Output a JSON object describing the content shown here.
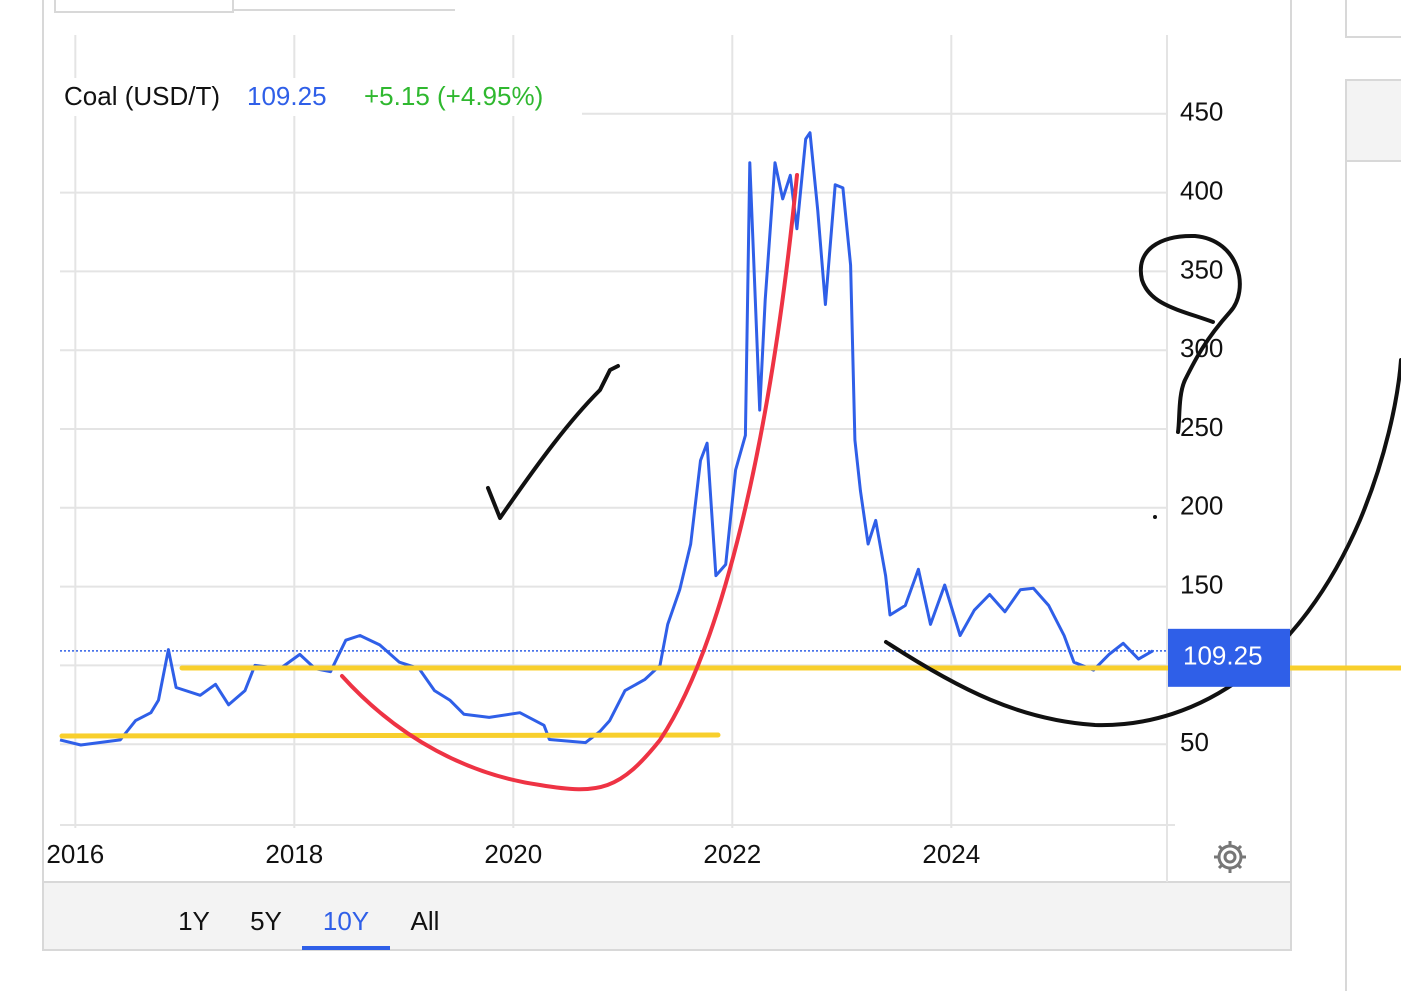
{
  "chart_data": {
    "type": "line",
    "title": "Coal (USD/T)",
    "last_price": 109.25,
    "change": "+5.15 (+4.95%)",
    "x": [
      2015.86,
      2016.05,
      2016.41,
      2016.55,
      2016.69,
      2016.76,
      2016.85,
      2016.92,
      2017.14,
      2017.28,
      2017.4,
      2017.55,
      2017.64,
      2017.87,
      2018.05,
      2018.19,
      2018.33,
      2018.47,
      2018.6,
      2018.78,
      2018.96,
      2019.14,
      2019.28,
      2019.42,
      2019.55,
      2019.78,
      2020.06,
      2020.28,
      2020.33,
      2020.66,
      2020.79,
      2020.88,
      2021.02,
      2021.2,
      2021.34,
      2021.41,
      2021.52,
      2021.62,
      2021.71,
      2021.77,
      2021.85,
      2021.94,
      2022.03,
      2022.12,
      2022.16,
      2022.21,
      2022.25,
      2022.3,
      2022.39,
      2022.46,
      2022.53,
      2022.59,
      2022.67,
      2022.71,
      2022.78,
      2022.85,
      2022.94,
      2023.01,
      2023.08,
      2023.12,
      2023.17,
      2023.24,
      2023.31,
      2023.4,
      2023.44,
      2023.58,
      2023.7,
      2023.81,
      2023.94,
      2024.08,
      2024.21,
      2024.35,
      2024.49,
      2024.63,
      2024.75,
      2024.89,
      2025.03,
      2025.12,
      2025.3,
      2025.44,
      2025.57,
      2025.71,
      2025.84
    ],
    "series": [
      {
        "color": "#2f5fe8",
        "values": [
          52.7,
          49.5,
          52.7,
          65,
          70,
          78,
          110,
          86,
          81,
          88,
          75,
          84,
          100,
          98,
          107,
          98,
          96,
          116,
          119,
          113,
          102,
          98,
          84,
          78,
          69,
          67,
          70,
          62,
          53,
          51,
          58,
          65,
          84,
          91,
          100,
          126,
          148,
          177,
          230,
          241,
          157,
          164,
          224,
          246,
          419,
          332,
          262,
          332,
          419,
          396,
          411,
          377,
          434,
          438,
          389,
          329,
          405,
          403,
          354,
          243,
          211,
          177,
          192,
          157,
          132,
          138,
          161,
          126,
          151,
          119,
          135,
          145,
          134,
          148,
          149,
          138,
          119,
          102,
          97,
          107,
          114,
          104,
          109.25
        ]
      }
    ],
    "xlim": [
      2015.86,
      2025.97
    ],
    "xticks": [
      2016,
      2018,
      2020,
      2022,
      2024
    ],
    "ylim": [
      0,
      500
    ],
    "yticks": [
      50,
      100,
      150,
      200,
      250,
      300,
      350,
      400,
      450
    ],
    "grid": true,
    "ranges": [
      "1Y",
      "5Y",
      "10Y",
      "All"
    ],
    "selected_range_index": 2
  }
}
